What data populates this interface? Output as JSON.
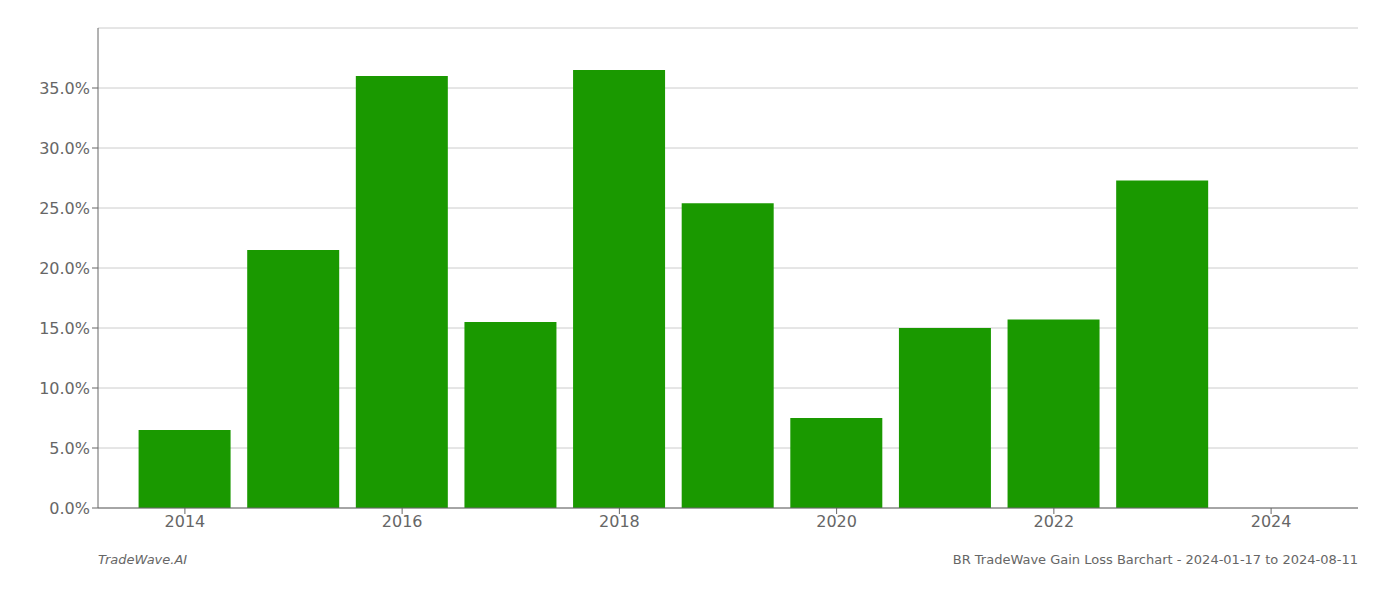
{
  "chart_data": {
    "type": "bar",
    "title": "BR TradeWave Gain Loss Barchart - 2024-01-17 to 2024-08-11",
    "annotations": [
      "TradeWave.AI"
    ],
    "x": [
      2014,
      2015,
      2016,
      2017,
      2018,
      2019,
      2020,
      2021,
      2022,
      2023
    ],
    "values": [
      0.065,
      0.215,
      0.36,
      0.155,
      0.365,
      0.254,
      0.075,
      0.15,
      0.157,
      0.273
    ],
    "color": "#1a9900",
    "xlim": [
      2013.2,
      2024.8
    ],
    "xticks": [
      2014,
      2016,
      2018,
      2020,
      2022,
      2024
    ],
    "ylim": [
      0.0,
      0.4
    ],
    "yticks": [
      {
        "value": 0.0,
        "label": "0.0%"
      },
      {
        "value": 0.05,
        "label": "5.0%"
      },
      {
        "value": 0.1,
        "label": "10.0%"
      },
      {
        "value": 0.15,
        "label": "15.0%"
      },
      {
        "value": 0.2,
        "label": "20.0%"
      },
      {
        "value": 0.25,
        "label": "25.0%"
      },
      {
        "value": 0.3,
        "label": "30.0%"
      },
      {
        "value": 0.35,
        "label": "35.0%"
      }
    ],
    "grid": true
  }
}
